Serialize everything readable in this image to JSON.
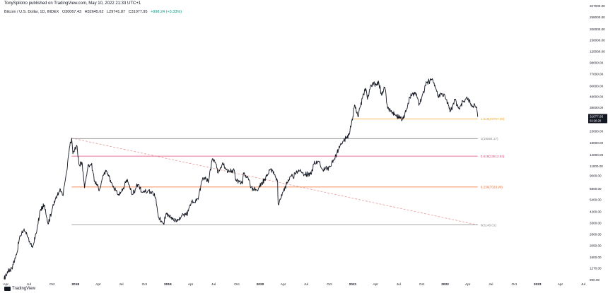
{
  "header": {
    "published": "TonySpilotro published on TradingView.com, May 10, 2022 21:33 UTC+1",
    "symbol": "Bitcoin / U.S. Dollar, 1D, INDEX",
    "open": "O30067.43",
    "high": "H32645.62",
    "low": "L29741.87",
    "close": "C31077.95",
    "change": "+998.24 (+3.33%)"
  },
  "footer": {
    "brand": "TradingView"
  },
  "chart_data": {
    "type": "line",
    "yscale": "log",
    "ylim": [
      990,
      327000
    ],
    "xlim": [
      "2017-03-20",
      "2023-07-15"
    ],
    "y_ticks": [
      {
        "v": 327000,
        "label": "327000.00"
      },
      {
        "v": 258000,
        "label": "258000.00"
      },
      {
        "v": 200000,
        "label": "200000.00"
      },
      {
        "v": 158000,
        "label": "158000.00"
      },
      {
        "v": 125000,
        "label": "125000.00"
      },
      {
        "v": 98000,
        "label": "98000.00"
      },
      {
        "v": 77000,
        "label": "77000.00"
      },
      {
        "v": 60000,
        "label": "60000.00"
      },
      {
        "v": 48000,
        "label": "48000.00"
      },
      {
        "v": 38000,
        "label": "38000.00"
      },
      {
        "v": 29000,
        "label": "29000.00"
      },
      {
        "v": 23000,
        "label": "23000.00"
      },
      {
        "v": 18000,
        "label": "18000.00"
      },
      {
        "v": 14000,
        "label": "14000.00"
      },
      {
        "v": 11000,
        "label": "11000.00"
      },
      {
        "v": 9000,
        "label": "9000.00"
      },
      {
        "v": 6800,
        "label": "6800.00"
      },
      {
        "v": 5400,
        "label": "5400.00"
      },
      {
        "v": 4200,
        "label": "4200.00"
      },
      {
        "v": 3300,
        "label": "3300.00"
      },
      {
        "v": 2600,
        "label": "2600.00"
      },
      {
        "v": 2050,
        "label": "2050.00"
      },
      {
        "v": 1600,
        "label": "1600.00"
      },
      {
        "v": 1270,
        "label": "1270.00"
      },
      {
        "v": 990,
        "label": "990.00"
      }
    ],
    "x_ticks": [
      {
        "d": "2017-04-01",
        "label": "Apr"
      },
      {
        "d": "2017-07-01",
        "label": "Jul"
      },
      {
        "d": "2017-10-01",
        "label": "Oct"
      },
      {
        "d": "2018-01-01",
        "label": "2018",
        "bold": true
      },
      {
        "d": "2018-04-01",
        "label": "Apr"
      },
      {
        "d": "2018-07-01",
        "label": "Jul"
      },
      {
        "d": "2018-10-01",
        "label": "Oct"
      },
      {
        "d": "2019-01-01",
        "label": "2019",
        "bold": true
      },
      {
        "d": "2019-04-01",
        "label": "Apr"
      },
      {
        "d": "2019-07-01",
        "label": "Jul"
      },
      {
        "d": "2019-10-01",
        "label": "Oct"
      },
      {
        "d": "2020-01-01",
        "label": "2020",
        "bold": true
      },
      {
        "d": "2020-04-01",
        "label": "Apr"
      },
      {
        "d": "2020-07-01",
        "label": "Jul"
      },
      {
        "d": "2020-10-01",
        "label": "Oct"
      },
      {
        "d": "2021-01-01",
        "label": "2021",
        "bold": true
      },
      {
        "d": "2021-04-01",
        "label": "Apr"
      },
      {
        "d": "2021-07-01",
        "label": "Jul"
      },
      {
        "d": "2021-10-01",
        "label": "Oct"
      },
      {
        "d": "2022-01-01",
        "label": "2022",
        "bold": true
      },
      {
        "d": "2022-04-01",
        "label": "Apr"
      },
      {
        "d": "2022-07-01",
        "label": "Jul"
      },
      {
        "d": "2022-10-01",
        "label": "Oct"
      },
      {
        "d": "2023-01-01",
        "label": "2023",
        "bold": true
      },
      {
        "d": "2023-04-01",
        "label": "Apr"
      },
      {
        "d": "2023-07-01",
        "label": "Jul"
      }
    ],
    "series": [
      {
        "color": "#131722",
        "points": [
          [
            "2017-03-25",
            1000
          ],
          [
            "2017-04-10",
            1180
          ],
          [
            "2017-04-25",
            1270
          ],
          [
            "2017-05-15",
            1750
          ],
          [
            "2017-05-25",
            2400
          ],
          [
            "2017-06-12",
            2900
          ],
          [
            "2017-06-20",
            2600
          ],
          [
            "2017-07-15",
            1950
          ],
          [
            "2017-08-01",
            2750
          ],
          [
            "2017-08-15",
            4300
          ],
          [
            "2017-09-01",
            4800
          ],
          [
            "2017-09-15",
            3200
          ],
          [
            "2017-10-01",
            4400
          ],
          [
            "2017-10-20",
            5900
          ],
          [
            "2017-11-01",
            6800
          ],
          [
            "2017-11-12",
            5900
          ],
          [
            "2017-11-28",
            9800
          ],
          [
            "2017-12-08",
            16000
          ],
          [
            "2017-12-17",
            19800
          ],
          [
            "2017-12-22",
            14200
          ],
          [
            "2018-01-06",
            17000
          ],
          [
            "2018-01-16",
            11200
          ],
          [
            "2018-01-28",
            11500
          ],
          [
            "2018-02-06",
            6900
          ],
          [
            "2018-02-20",
            11200
          ],
          [
            "2018-03-05",
            11400
          ],
          [
            "2018-03-18",
            8000
          ],
          [
            "2018-04-06",
            6600
          ],
          [
            "2018-04-25",
            9600
          ],
          [
            "2018-05-05",
            9800
          ],
          [
            "2018-05-28",
            7200
          ],
          [
            "2018-06-24",
            5900
          ],
          [
            "2018-07-25",
            8300
          ],
          [
            "2018-08-14",
            6000
          ],
          [
            "2018-09-04",
            7400
          ],
          [
            "2018-09-20",
            6300
          ],
          [
            "2018-10-15",
            6500
          ],
          [
            "2018-11-01",
            6400
          ],
          [
            "2018-11-14",
            5600
          ],
          [
            "2018-11-25",
            3700
          ],
          [
            "2018-12-15",
            3250
          ],
          [
            "2018-12-25",
            4000
          ],
          [
            "2019-01-20",
            3550
          ],
          [
            "2019-02-08",
            3400
          ],
          [
            "2019-02-25",
            3850
          ],
          [
            "2019-03-20",
            4000
          ],
          [
            "2019-04-03",
            5000
          ],
          [
            "2019-05-01",
            5400
          ],
          [
            "2019-05-15",
            8000
          ],
          [
            "2019-05-30",
            8700
          ],
          [
            "2019-06-10",
            7700
          ],
          [
            "2019-06-26",
            12800
          ],
          [
            "2019-07-10",
            11500
          ],
          [
            "2019-07-17",
            9500
          ],
          [
            "2019-08-06",
            11800
          ],
          [
            "2019-08-28",
            9700
          ],
          [
            "2019-09-20",
            10100
          ],
          [
            "2019-09-26",
            8100
          ],
          [
            "2019-10-22",
            7500
          ],
          [
            "2019-10-27",
            9500
          ],
          [
            "2019-11-20",
            8100
          ],
          [
            "2019-11-25",
            6900
          ],
          [
            "2019-12-18",
            6600
          ],
          [
            "2020-01-05",
            7400
          ],
          [
            "2020-02-12",
            10300
          ],
          [
            "2020-02-25",
            9200
          ],
          [
            "2020-03-10",
            7900
          ],
          [
            "2020-03-12",
            4900
          ],
          [
            "2020-03-16",
            5000
          ],
          [
            "2020-04-01",
            6400
          ],
          [
            "2020-04-29",
            8800
          ],
          [
            "2020-05-10",
            8700
          ],
          [
            "2020-06-01",
            10100
          ],
          [
            "2020-06-25",
            9200
          ],
          [
            "2020-07-20",
            9200
          ],
          [
            "2020-08-01",
            11500
          ],
          [
            "2020-08-17",
            12200
          ],
          [
            "2020-09-05",
            10100
          ],
          [
            "2020-10-01",
            10700
          ],
          [
            "2020-10-21",
            12800
          ],
          [
            "2020-11-05",
            15500
          ],
          [
            "2020-11-25",
            18500
          ],
          [
            "2020-12-16",
            21000
          ],
          [
            "2020-12-31",
            29000
          ],
          [
            "2021-01-08",
            40000
          ],
          [
            "2021-01-22",
            31000
          ],
          [
            "2021-02-08",
            46000
          ],
          [
            "2021-02-21",
            57000
          ],
          [
            "2021-02-28",
            45000
          ],
          [
            "2021-03-13",
            61000
          ],
          [
            "2021-04-14",
            64000
          ],
          [
            "2021-04-25",
            49000
          ],
          [
            "2021-05-08",
            58000
          ],
          [
            "2021-05-19",
            37000
          ],
          [
            "2021-05-30",
            35500
          ],
          [
            "2021-06-22",
            31500
          ],
          [
            "2021-07-20",
            29800
          ],
          [
            "2021-08-14",
            47000
          ],
          [
            "2021-09-06",
            52000
          ],
          [
            "2021-09-21",
            41000
          ],
          [
            "2021-10-20",
            64000
          ],
          [
            "2021-11-10",
            68500
          ],
          [
            "2021-11-25",
            57000
          ],
          [
            "2021-12-04",
            48000
          ],
          [
            "2021-12-27",
            50500
          ],
          [
            "2022-01-22",
            35000
          ],
          [
            "2022-02-10",
            44500
          ],
          [
            "2022-02-24",
            37000
          ],
          [
            "2022-03-28",
            47500
          ],
          [
            "2022-04-15",
            40500
          ],
          [
            "2022-04-30",
            38500
          ],
          [
            "2022-05-07",
            35500
          ],
          [
            "2022-05-10",
            31077.95
          ]
        ]
      }
    ],
    "levels": [
      {
        "price": 29757,
        "label": "1.618(29757.39)",
        "color": "#f5a623",
        "x_start": "2020-12-27",
        "x_end": "2022-05-10"
      },
      {
        "price": 19584,
        "label": "1(19584.17)",
        "color": "#8a8a8a",
        "x_start": "2017-12-17",
        "x_end": "2022-05-10"
      },
      {
        "price": 13512,
        "label": "0.618(13512.84)",
        "color": "#e0457b",
        "x_start": "2017-12-17",
        "x_end": "2022-05-10"
      },
      {
        "price": 7029,
        "label": "0.236(7029.90)",
        "color": "#f26522",
        "x_start": "2017-12-17",
        "x_end": "2022-05-10"
      },
      {
        "price": 3148,
        "label": "0(3148.01)",
        "color": "#8a8a8a",
        "x_start": "2017-12-17",
        "x_end": "2022-05-10"
      }
    ],
    "trendline": {
      "from": [
        "2017-12-17",
        19800
      ],
      "to": [
        "2022-05-10",
        3150
      ],
      "color": "#e89a9a"
    },
    "current_price": {
      "value": 31077.95,
      "label": "31077.95",
      "countdown": "02:26:28",
      "color": "#131722"
    }
  }
}
